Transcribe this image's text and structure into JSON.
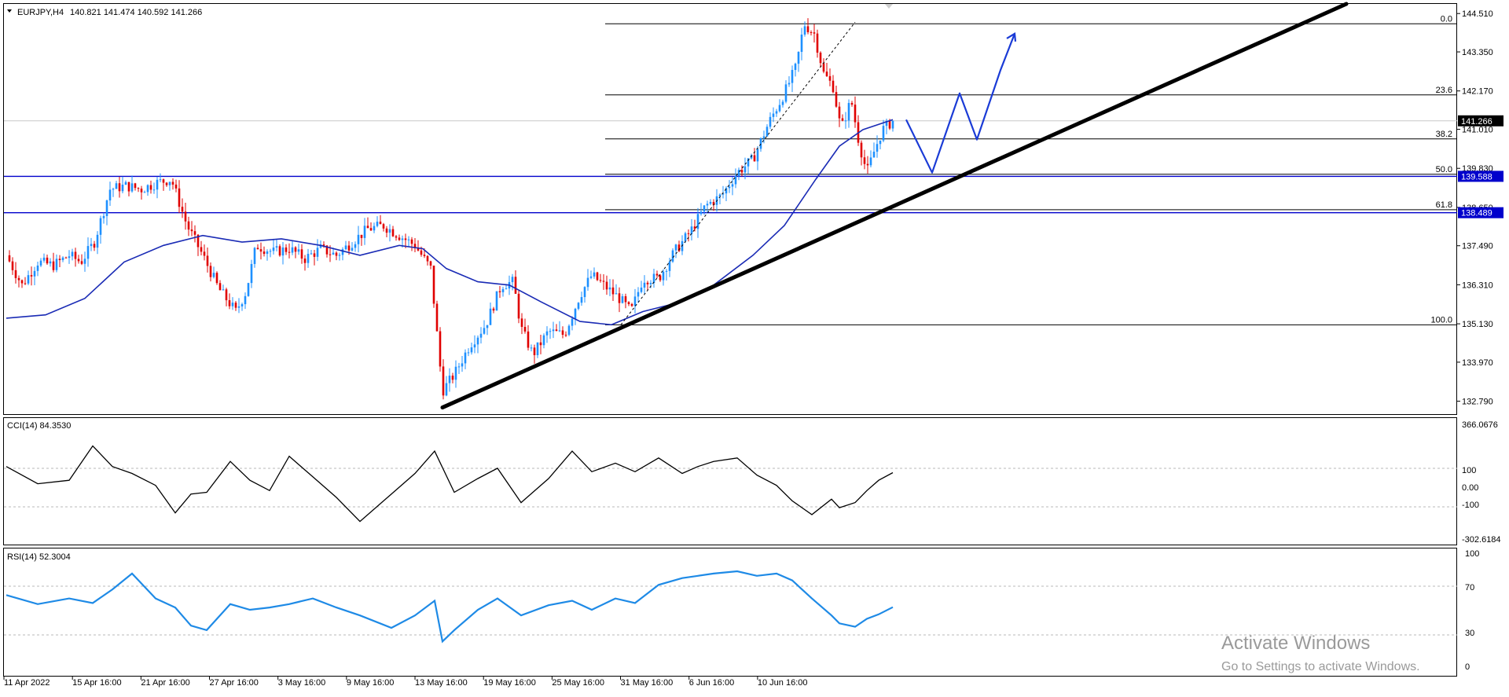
{
  "header": {
    "symbol": "EURJPY,H4",
    "ohlc": "140.821 141.474 140.592 141.266"
  },
  "indicators": {
    "cci_label": "CCI(14) 84.3530",
    "rsi_label": "RSI(14) 52.3004"
  },
  "watermark": {
    "line1": "Activate Windows",
    "line2": "Go to Settings to activate Windows."
  },
  "colors": {
    "bull": "#1e90ff",
    "bear": "#e00000",
    "ma": "#1a2bb5",
    "hline": "#0000cc",
    "trend": "#000000",
    "drawing": "#1a3bd6",
    "rsi": "#1e8ae6",
    "badge": "#0000cc"
  },
  "chart_data": [
    {
      "type": "candlestick",
      "symbol": "EURJPY",
      "timeframe": "H4",
      "x_tick_labels": [
        "11 Apr 2022",
        "15 Apr 16:00",
        "21 Apr 16:00",
        "27 Apr 16:00",
        "3 May 16:00",
        "9 May 16:00",
        "13 May 16:00",
        "19 May 16:00",
        "25 May 16:00",
        "31 May 16:00",
        "6 Jun 16:00",
        "10 Jun 16:00"
      ],
      "y_tick_labels": [
        "144.510",
        "143.350",
        "142.170",
        "141.010",
        "139.830",
        "138.650",
        "137.490",
        "136.310",
        "135.130",
        "133.970",
        "132.790"
      ],
      "ylim": [
        132.4,
        144.8
      ],
      "close_path": [
        {
          "t": 0,
          "v": 137.2
        },
        {
          "t": 20,
          "v": 136.3
        },
        {
          "t": 40,
          "v": 137.0
        },
        {
          "t": 60,
          "v": 136.9
        },
        {
          "t": 80,
          "v": 137.2
        },
        {
          "t": 95,
          "v": 137.0
        },
        {
          "t": 112,
          "v": 137.6
        },
        {
          "t": 132,
          "v": 139.2
        },
        {
          "t": 152,
          "v": 139.3
        },
        {
          "t": 172,
          "v": 139.2
        },
        {
          "t": 192,
          "v": 139.4
        },
        {
          "t": 210,
          "v": 139.5
        },
        {
          "t": 230,
          "v": 138.1
        },
        {
          "t": 250,
          "v": 137.2
        },
        {
          "t": 270,
          "v": 136.2
        },
        {
          "t": 292,
          "v": 135.5
        },
        {
          "t": 305,
          "v": 136.1
        },
        {
          "t": 318,
          "v": 137.5
        },
        {
          "t": 340,
          "v": 137.3
        },
        {
          "t": 360,
          "v": 137.4
        },
        {
          "t": 380,
          "v": 137.1
        },
        {
          "t": 400,
          "v": 137.4
        },
        {
          "t": 420,
          "v": 137.2
        },
        {
          "t": 440,
          "v": 137.6
        },
        {
          "t": 460,
          "v": 138.0
        },
        {
          "t": 480,
          "v": 138.1
        },
        {
          "t": 500,
          "v": 137.8
        },
        {
          "t": 520,
          "v": 137.5
        },
        {
          "t": 540,
          "v": 136.8
        },
        {
          "t": 555,
          "v": 133.1
        },
        {
          "t": 570,
          "v": 133.6
        },
        {
          "t": 590,
          "v": 134.5
        },
        {
          "t": 610,
          "v": 135.1
        },
        {
          "t": 630,
          "v": 136.3
        },
        {
          "t": 645,
          "v": 136.4
        },
        {
          "t": 655,
          "v": 135.0
        },
        {
          "t": 670,
          "v": 134.2
        },
        {
          "t": 690,
          "v": 134.9
        },
        {
          "t": 710,
          "v": 134.8
        },
        {
          "t": 730,
          "v": 136.0
        },
        {
          "t": 745,
          "v": 136.6
        },
        {
          "t": 760,
          "v": 136.3
        },
        {
          "t": 780,
          "v": 135.9
        },
        {
          "t": 795,
          "v": 135.5
        },
        {
          "t": 810,
          "v": 136.5
        },
        {
          "t": 830,
          "v": 136.5
        },
        {
          "t": 850,
          "v": 137.3
        },
        {
          "t": 870,
          "v": 137.9
        },
        {
          "t": 890,
          "v": 138.7
        },
        {
          "t": 910,
          "v": 139.0
        },
        {
          "t": 930,
          "v": 139.7
        },
        {
          "t": 950,
          "v": 140.1
        },
        {
          "t": 970,
          "v": 141.2
        },
        {
          "t": 990,
          "v": 142.1
        },
        {
          "t": 1005,
          "v": 142.9
        },
        {
          "t": 1015,
          "v": 144.2
        },
        {
          "t": 1028,
          "v": 143.9
        },
        {
          "t": 1040,
          "v": 142.7
        },
        {
          "t": 1052,
          "v": 142.3
        },
        {
          "t": 1062,
          "v": 141.0
        },
        {
          "t": 1075,
          "v": 141.9
        },
        {
          "t": 1085,
          "v": 140.6
        },
        {
          "t": 1095,
          "v": 139.7
        },
        {
          "t": 1105,
          "v": 140.4
        },
        {
          "t": 1115,
          "v": 141.0
        },
        {
          "t": 1128,
          "v": 141.266
        }
      ],
      "moving_average": [
        {
          "t": 0,
          "v": 135.3
        },
        {
          "t": 50,
          "v": 135.4
        },
        {
          "t": 100,
          "v": 135.9
        },
        {
          "t": 150,
          "v": 137.0
        },
        {
          "t": 200,
          "v": 137.5
        },
        {
          "t": 250,
          "v": 137.8
        },
        {
          "t": 300,
          "v": 137.6
        },
        {
          "t": 350,
          "v": 137.7
        },
        {
          "t": 400,
          "v": 137.5
        },
        {
          "t": 450,
          "v": 137.2
        },
        {
          "t": 500,
          "v": 137.5
        },
        {
          "t": 530,
          "v": 137.4
        },
        {
          "t": 560,
          "v": 136.8
        },
        {
          "t": 600,
          "v": 136.4
        },
        {
          "t": 640,
          "v": 136.3
        },
        {
          "t": 680,
          "v": 135.8
        },
        {
          "t": 730,
          "v": 135.2
        },
        {
          "t": 770,
          "v": 135.1
        },
        {
          "t": 810,
          "v": 135.5
        },
        {
          "t": 860,
          "v": 135.8
        },
        {
          "t": 900,
          "v": 136.3
        },
        {
          "t": 950,
          "v": 137.2
        },
        {
          "t": 990,
          "v": 138.1
        },
        {
          "t": 1030,
          "v": 139.5
        },
        {
          "t": 1060,
          "v": 140.5
        },
        {
          "t": 1090,
          "v": 141.0
        },
        {
          "t": 1128,
          "v": 141.3
        }
      ],
      "horizontal_lines": [
        {
          "value": 139.588,
          "label": "139.588"
        },
        {
          "value": 138.489,
          "label": "138.489"
        }
      ],
      "current_price": {
        "value": 141.266,
        "label": "141.266"
      },
      "fibonacci": {
        "from": 144.2,
        "to": 135.1,
        "levels": [
          {
            "ratio": "0.0",
            "value": 144.2
          },
          {
            "ratio": "23.6",
            "value": 142.05
          },
          {
            "ratio": "38.2",
            "value": 140.72
          },
          {
            "ratio": "50.0",
            "value": 139.65
          },
          {
            "ratio": "61.8",
            "value": 138.58
          },
          {
            "ratio": "100.0",
            "value": 135.1
          }
        ]
      },
      "trendline": [
        {
          "t": 555,
          "v": 132.6
        },
        {
          "t": 1705,
          "v": 144.8
        }
      ],
      "projection_drawing": [
        {
          "t": 1145,
          "v": 141.3
        },
        {
          "t": 1178,
          "v": 139.7
        },
        {
          "t": 1213,
          "v": 142.1
        },
        {
          "t": 1235,
          "v": 140.7
        },
        {
          "t": 1265,
          "v": 142.8
        },
        {
          "t": 1283,
          "v": 143.9
        }
      ]
    },
    {
      "type": "line",
      "name": "CCI(14)",
      "last_value": 84.353,
      "y_tick_labels": [
        "366.0676",
        "100",
        "0.00",
        "-100",
        "-302.6184"
      ],
      "ylim": [
        -302.6184,
        366.0676
      ],
      "levels": [
        100,
        -100
      ],
      "x": [
        0,
        40,
        80,
        110,
        135,
        160,
        190,
        215,
        235,
        255,
        285,
        310,
        335,
        360,
        390,
        420,
        450,
        490,
        520,
        545,
        570,
        600,
        625,
        655,
        690,
        720,
        745,
        775,
        800,
        830,
        860,
        880,
        900,
        930,
        955,
        980,
        1000,
        1025,
        1050,
        1060,
        1080,
        1095,
        1110,
        1128
      ],
      "values": [
        120,
        20,
        40,
        240,
        120,
        80,
        10,
        -150,
        -40,
        -30,
        150,
        40,
        -20,
        180,
        60,
        -60,
        -200,
        -40,
        80,
        210,
        -30,
        50,
        110,
        -90,
        50,
        210,
        90,
        140,
        90,
        170,
        80,
        120,
        150,
        170,
        70,
        10,
        -80,
        -160,
        -70,
        -120,
        -90,
        -20,
        40,
        84.35
      ]
    },
    {
      "type": "line",
      "name": "RSI(14)",
      "last_value": 52.3004,
      "y_tick_labels": [
        "100",
        "70",
        "30",
        "0"
      ],
      "ylim": [
        0,
        100
      ],
      "levels": [
        70,
        30
      ],
      "x": [
        0,
        40,
        80,
        110,
        135,
        160,
        190,
        215,
        235,
        255,
        285,
        310,
        335,
        360,
        390,
        420,
        450,
        490,
        520,
        545,
        555,
        570,
        600,
        625,
        655,
        690,
        720,
        745,
        775,
        800,
        830,
        860,
        880,
        900,
        930,
        955,
        980,
        1000,
        1025,
        1050,
        1060,
        1080,
        1095,
        1110,
        1128
      ],
      "values": [
        63,
        55,
        60,
        56,
        68,
        82,
        60,
        52,
        36,
        32,
        55,
        50,
        52,
        55,
        60,
        52,
        45,
        34,
        45,
        58,
        22,
        32,
        50,
        60,
        45,
        54,
        58,
        50,
        60,
        56,
        72,
        78,
        80,
        82,
        84,
        80,
        82,
        76,
        60,
        45,
        38,
        35,
        42,
        46,
        52.3
      ]
    }
  ]
}
